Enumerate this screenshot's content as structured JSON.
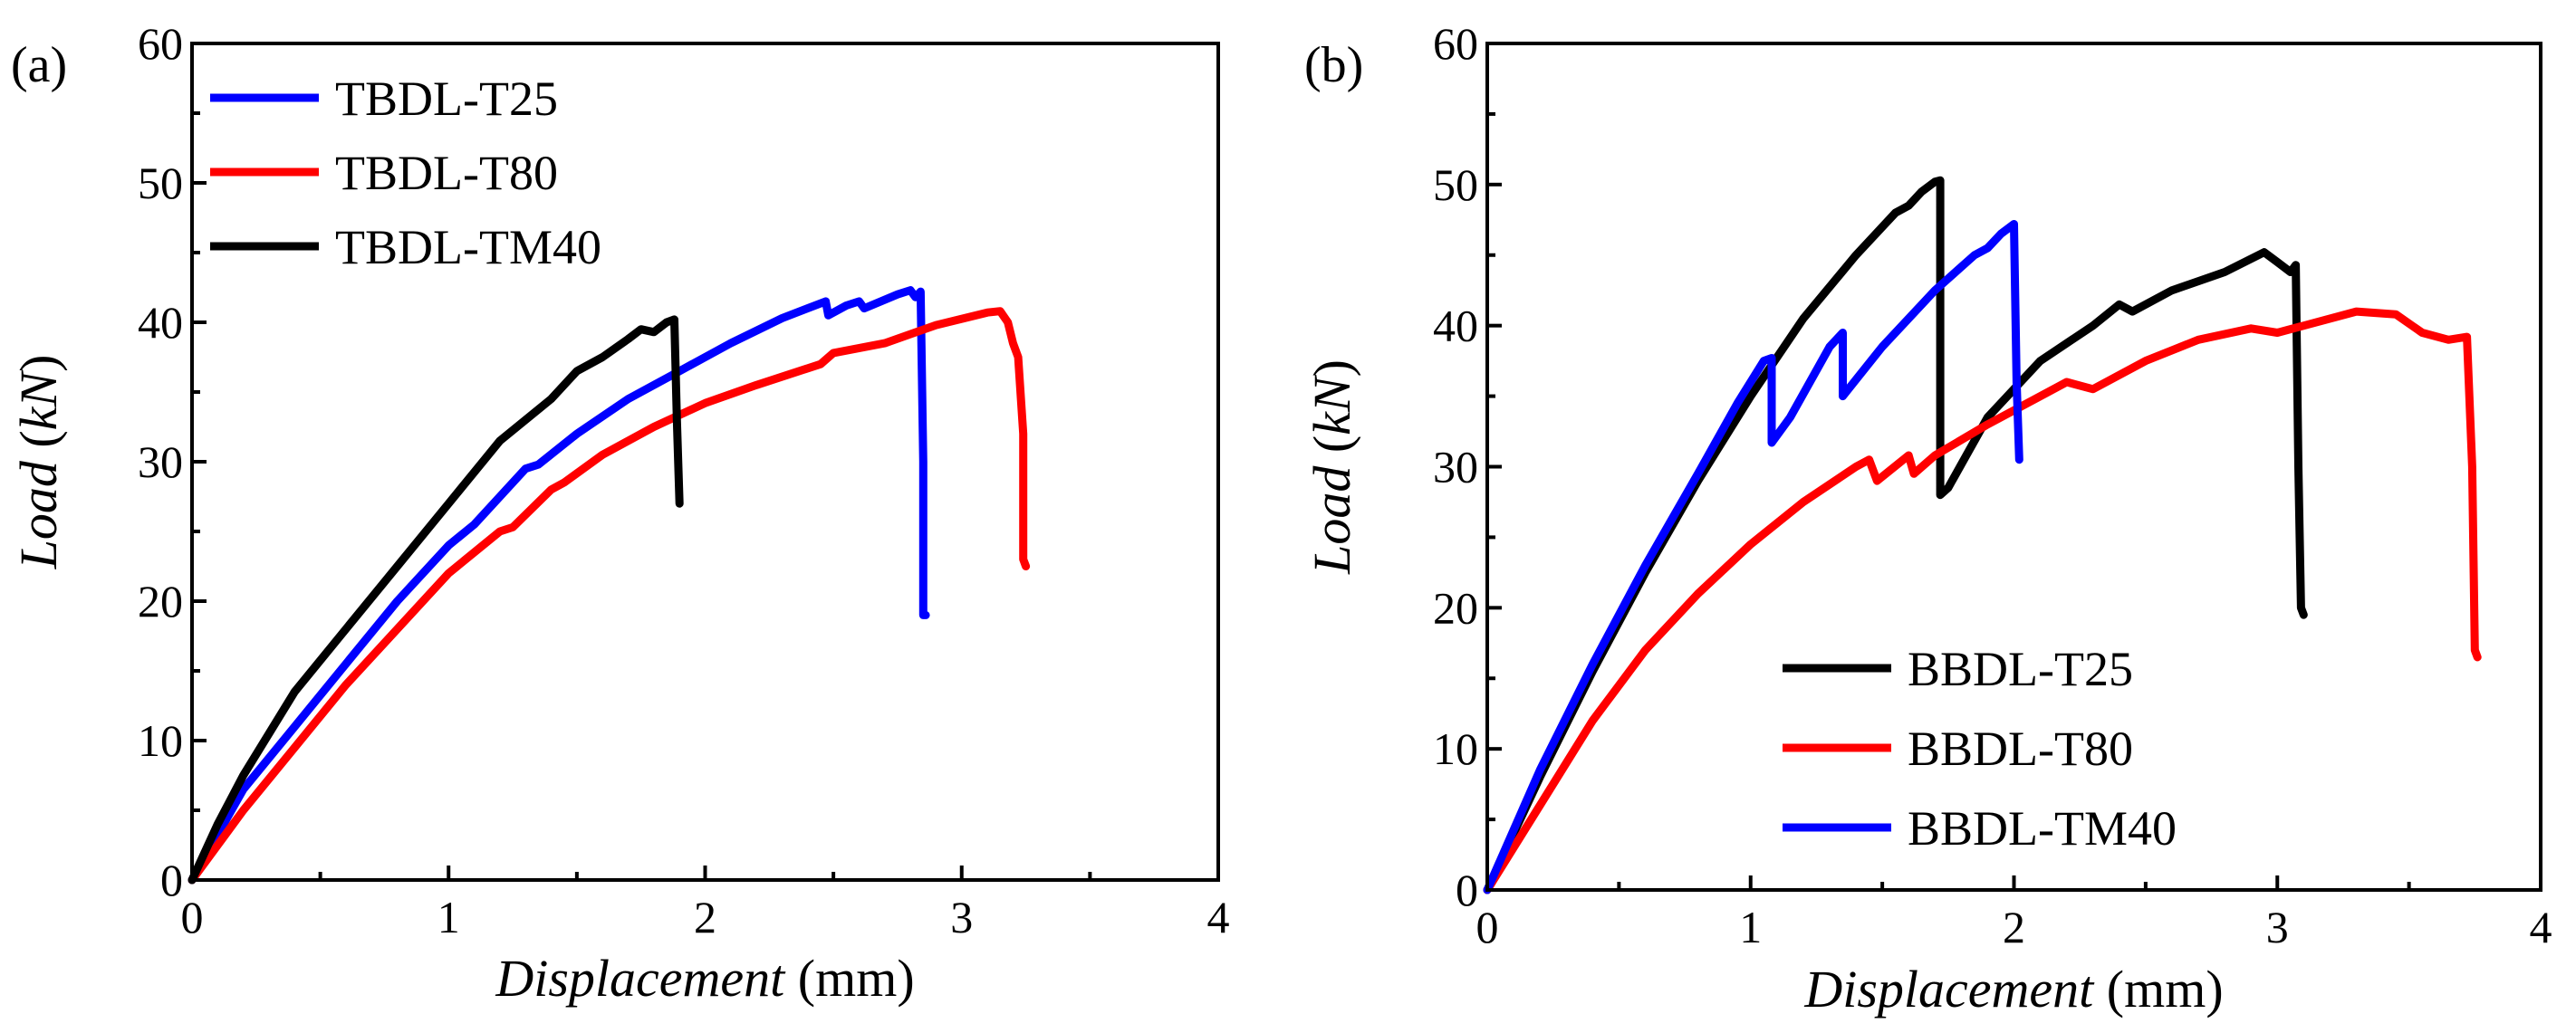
{
  "chart_data": [
    {
      "type": "line",
      "panel_label": "(a)",
      "xlabel": {
        "italic": "Displacement",
        "unit": " (mm)"
      },
      "ylabel": {
        "italic_main": "Load",
        "open": "  (",
        "italic_unit": "kN",
        "close": ")"
      },
      "xlim": [
        0,
        4
      ],
      "ylim": [
        0,
        60
      ],
      "xticks": [
        0,
        1,
        2,
        3,
        4
      ],
      "yticks": [
        0,
        10,
        20,
        30,
        40,
        50,
        60
      ],
      "legend_position": "top-left",
      "series": [
        {
          "name": "TBDL-T25",
          "color": "#0000ff",
          "x": [
            0,
            0.2,
            0.4,
            0.6,
            0.8,
            1.0,
            1.1,
            1.3,
            1.35,
            1.5,
            1.7,
            1.9,
            2.1,
            2.3,
            2.47,
            2.48,
            2.55,
            2.6,
            2.62,
            2.75,
            2.8,
            2.82,
            2.84,
            2.85,
            2.85,
            2.86
          ],
          "y": [
            0,
            6.5,
            11,
            15.5,
            20,
            24,
            25.5,
            29.5,
            29.8,
            32,
            34.5,
            36.5,
            38.5,
            40.3,
            41.5,
            40.5,
            41.2,
            41.5,
            41,
            42,
            42.3,
            41.8,
            42.2,
            30,
            19,
            19
          ]
        },
        {
          "name": "TBDL-T80",
          "color": "#ff0000",
          "x": [
            0,
            0.2,
            0.4,
            0.6,
            0.8,
            1.0,
            1.2,
            1.25,
            1.4,
            1.45,
            1.6,
            1.8,
            2.0,
            2.2,
            2.45,
            2.5,
            2.7,
            2.9,
            3.1,
            3.15,
            3.18,
            3.2,
            3.22,
            3.24,
            3.24,
            3.25
          ],
          "y": [
            0,
            5,
            9.5,
            14,
            18,
            22,
            25,
            25.3,
            28,
            28.5,
            30.5,
            32.5,
            34.2,
            35.5,
            37,
            37.8,
            38.5,
            39.8,
            40.7,
            40.8,
            40,
            38.5,
            37.5,
            32,
            23,
            22.5
          ]
        },
        {
          "name": "TBDL-TM40",
          "color": "#000000",
          "x": [
            0,
            0.1,
            0.2,
            0.4,
            0.6,
            0.8,
            1.0,
            1.2,
            1.4,
            1.5,
            1.6,
            1.7,
            1.75,
            1.8,
            1.85,
            1.88,
            1.89,
            1.9
          ],
          "y": [
            0,
            4,
            7.5,
            13.5,
            18,
            22.5,
            27,
            31.5,
            34.5,
            36.5,
            37.5,
            38.8,
            39.5,
            39.3,
            40,
            40.2,
            33,
            27
          ]
        }
      ]
    },
    {
      "type": "line",
      "panel_label": "(b)",
      "xlabel": {
        "italic": "Displacement",
        "unit": " (mm)"
      },
      "ylabel": {
        "italic_main": "Load",
        "open": "  (",
        "italic_unit": "kN",
        "close": ")"
      },
      "xlim": [
        0,
        4
      ],
      "ylim": [
        0,
        60
      ],
      "xticks": [
        0,
        1,
        2,
        3,
        4
      ],
      "yticks": [
        0,
        10,
        20,
        30,
        40,
        50,
        60
      ],
      "legend_position": "bottom-right",
      "series": [
        {
          "name": "BBDL-T25",
          "color": "#000000",
          "x": [
            0,
            0.2,
            0.4,
            0.6,
            0.8,
            1.0,
            1.2,
            1.4,
            1.55,
            1.6,
            1.65,
            1.7,
            1.72,
            1.72,
            1.75,
            1.9,
            2.1,
            2.3,
            2.4,
            2.45,
            2.6,
            2.8,
            2.95,
            3.0,
            3.05,
            3.07,
            3.08,
            3.09,
            3.1
          ],
          "y": [
            0,
            8,
            15.5,
            22.5,
            29,
            35,
            40.5,
            45,
            48,
            48.5,
            49.5,
            50.2,
            50.3,
            28,
            28.5,
            33.5,
            37.5,
            40,
            41.5,
            41,
            42.5,
            43.8,
            45.2,
            44.5,
            43.8,
            44.3,
            30,
            20,
            19.5
          ]
        },
        {
          "name": "BBDL-T80",
          "color": "#ff0000",
          "x": [
            0,
            0.2,
            0.4,
            0.6,
            0.8,
            1.0,
            1.2,
            1.4,
            1.45,
            1.48,
            1.6,
            1.62,
            1.7,
            1.9,
            2.1,
            2.2,
            2.3,
            2.5,
            2.7,
            2.9,
            3.0,
            3.3,
            3.45,
            3.55,
            3.65,
            3.72,
            3.74,
            3.75,
            3.76
          ],
          "y": [
            0,
            6,
            12,
            17,
            21,
            24.5,
            27.5,
            30,
            30.5,
            29,
            30.8,
            29.5,
            30.8,
            33,
            35,
            36,
            35.5,
            37.5,
            39,
            39.8,
            39.5,
            41,
            40.8,
            39.5,
            39,
            39.2,
            30,
            17,
            16.5
          ]
        },
        {
          "name": "BBDL-TM40",
          "color": "#0000ff",
          "x": [
            0,
            0.2,
            0.4,
            0.6,
            0.8,
            0.95,
            1.05,
            1.08,
            1.08,
            1.15,
            1.3,
            1.35,
            1.35,
            1.5,
            1.7,
            1.85,
            1.9,
            1.95,
            2.0,
            2.01,
            2.02
          ],
          "y": [
            0,
            8.5,
            16,
            23,
            29.5,
            34.5,
            37.5,
            37.7,
            31.7,
            33.5,
            38.5,
            39.5,
            35,
            38.5,
            42.5,
            45,
            45.5,
            46.5,
            47.2,
            36,
            30.5
          ]
        }
      ]
    }
  ]
}
